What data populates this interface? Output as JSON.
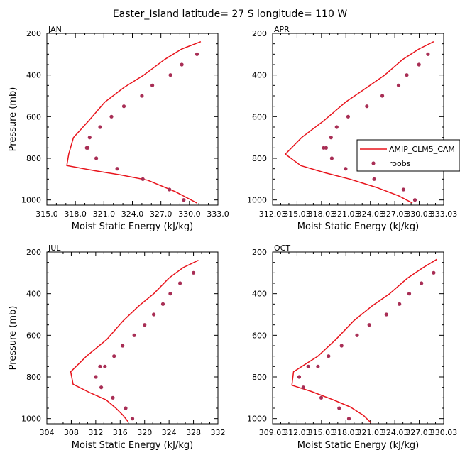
{
  "title": "Easter_Island  latitude= 27 S longitude= 110 W",
  "colors": {
    "model": "#e8141c",
    "obs": "#a82e55",
    "axis": "#000000"
  },
  "chart_data": [
    {
      "type": "line",
      "panel_label": "JAN",
      "xlabel": "Moist Static Energy (kJ/kg)",
      "ylabel": "Pressure (mb)",
      "xlim": [
        315.0,
        333.0
      ],
      "ylim": [
        200,
        1025
      ],
      "y_inverted": true,
      "xticks": [
        "315.0",
        "318.0",
        "321.0",
        "324.0",
        "327.0",
        "330.0",
        "333.0"
      ],
      "yticks": [
        "200",
        "400",
        "600",
        "800",
        "1000"
      ],
      "grid": false,
      "series": [
        {
          "name": "AMIP_CLM5_CAM",
          "kind": "line",
          "x": [
            331.2,
            329.2,
            327.4,
            325.2,
            323.1,
            321.1,
            319.4,
            317.8,
            317.3,
            317.1,
            320.1,
            322.8,
            325.6,
            328.5,
            330.8
          ],
          "y": [
            240,
            275,
            325,
            400,
            460,
            530,
            620,
            700,
            780,
            835,
            860,
            880,
            905,
            960,
            1015
          ]
        },
        {
          "name": "roobs",
          "kind": "markers",
          "x": [
            330.8,
            329.2,
            328.0,
            326.1,
            325.0,
            323.1,
            321.8,
            320.6,
            319.5,
            319.3,
            319.2,
            320.2,
            322.4,
            325.1,
            327.9,
            329.4
          ],
          "y": [
            300,
            350,
            400,
            450,
            500,
            550,
            600,
            650,
            700,
            750,
            750,
            800,
            850,
            900,
            950,
            1000
          ]
        }
      ]
    },
    {
      "type": "line",
      "panel_label": "APR",
      "xlabel": "Moist Static Energy (kJ/kg)",
      "ylabel": "",
      "xlim": [
        312.03,
        333.03
      ],
      "ylim": [
        200,
        1025
      ],
      "y_inverted": true,
      "xticks": [
        "312.03",
        "315.03",
        "318.03",
        "321.03",
        "324.03",
        "327.03",
        "330.03",
        "333.03"
      ],
      "yticks": [
        "200",
        "400",
        "600",
        "800",
        "1000"
      ],
      "grid": false,
      "legend": {
        "placement": "right",
        "entries": [
          "AMIP_CLM5_CAM",
          "roobs"
        ]
      },
      "series": [
        {
          "name": "AMIP_CLM5_CAM",
          "kind": "line",
          "x": [
            331.8,
            330.0,
            328.0,
            325.8,
            323.6,
            321.0,
            318.3,
            315.6,
            313.6,
            315.5,
            318.5,
            321.5,
            324.8,
            327.5,
            329.2
          ],
          "y": [
            240,
            275,
            325,
            400,
            460,
            530,
            620,
            700,
            780,
            835,
            870,
            900,
            940,
            980,
            1015
          ]
        },
        {
          "name": "roobs",
          "kind": "markers",
          "x": [
            331.1,
            330.0,
            328.5,
            327.5,
            325.5,
            323.6,
            321.3,
            319.9,
            319.2,
            318.6,
            318.3,
            319.3,
            321.0,
            324.5,
            328.1,
            329.5
          ],
          "y": [
            300,
            350,
            400,
            450,
            500,
            550,
            600,
            650,
            700,
            750,
            750,
            800,
            850,
            900,
            950,
            1000
          ]
        }
      ]
    },
    {
      "type": "line",
      "panel_label": "JUL",
      "xlabel": "Moist Static Energy (kJ/kg)",
      "ylabel": "Pressure (mb)",
      "xlim": [
        304,
        332
      ],
      "ylim": [
        200,
        1025
      ],
      "y_inverted": true,
      "xticks": [
        "304",
        "308",
        "312",
        "316",
        "320",
        "324",
        "328",
        "332"
      ],
      "yticks": [
        "200",
        "400",
        "600",
        "800",
        "1000"
      ],
      "grid": false,
      "series": [
        {
          "name": "AMIP_CLM5_CAM",
          "kind": "line",
          "x": [
            328.8,
            326.3,
            324.0,
            321.5,
            319.0,
            316.5,
            313.8,
            310.5,
            307.9,
            308.3,
            311.0,
            313.7,
            315.3,
            316.5,
            317.3
          ],
          "y": [
            240,
            275,
            325,
            400,
            460,
            530,
            620,
            700,
            775,
            835,
            875,
            910,
            950,
            985,
            1015
          ]
        },
        {
          "name": "roobs",
          "kind": "markers",
          "x": [
            328.0,
            325.8,
            324.2,
            323.0,
            321.5,
            320.0,
            318.3,
            316.4,
            315.0,
            313.5,
            312.7,
            312.0,
            312.9,
            314.8,
            316.9,
            318.0
          ],
          "y": [
            300,
            350,
            400,
            450,
            500,
            550,
            600,
            650,
            700,
            750,
            750,
            800,
            850,
            900,
            950,
            1000
          ]
        }
      ]
    },
    {
      "type": "line",
      "panel_label": "OCT",
      "xlabel": "Moist Static Energy (kJ/kg)",
      "ylabel": "",
      "xlim": [
        309.03,
        330.03
      ],
      "ylim": [
        200,
        1025
      ],
      "y_inverted": true,
      "xticks": [
        "309.03",
        "312.03",
        "315.03",
        "318.03",
        "321.03",
        "324.03",
        "327.03",
        "330.03"
      ],
      "yticks": [
        "200",
        "400",
        "600",
        "800",
        "1000"
      ],
      "grid": false,
      "series": [
        {
          "name": "AMIP_CLM5_CAM",
          "kind": "line",
          "x": [
            329.2,
            327.5,
            325.6,
            323.4,
            321.2,
            319.0,
            316.8,
            314.6,
            311.6,
            311.4,
            313.8,
            316.5,
            318.6,
            320.2,
            321.1
          ],
          "y": [
            235,
            275,
            325,
            400,
            460,
            530,
            620,
            700,
            775,
            840,
            870,
            910,
            945,
            985,
            1020
          ]
        },
        {
          "name": "roobs",
          "kind": "markers",
          "x": [
            328.8,
            327.3,
            325.8,
            324.6,
            323.0,
            320.9,
            319.4,
            317.5,
            315.9,
            314.6,
            313.4,
            312.3,
            312.8,
            315.0,
            317.2,
            318.4
          ],
          "y": [
            300,
            350,
            400,
            450,
            500,
            550,
            600,
            650,
            700,
            750,
            750,
            800,
            850,
            900,
            950,
            1000
          ]
        }
      ]
    }
  ]
}
